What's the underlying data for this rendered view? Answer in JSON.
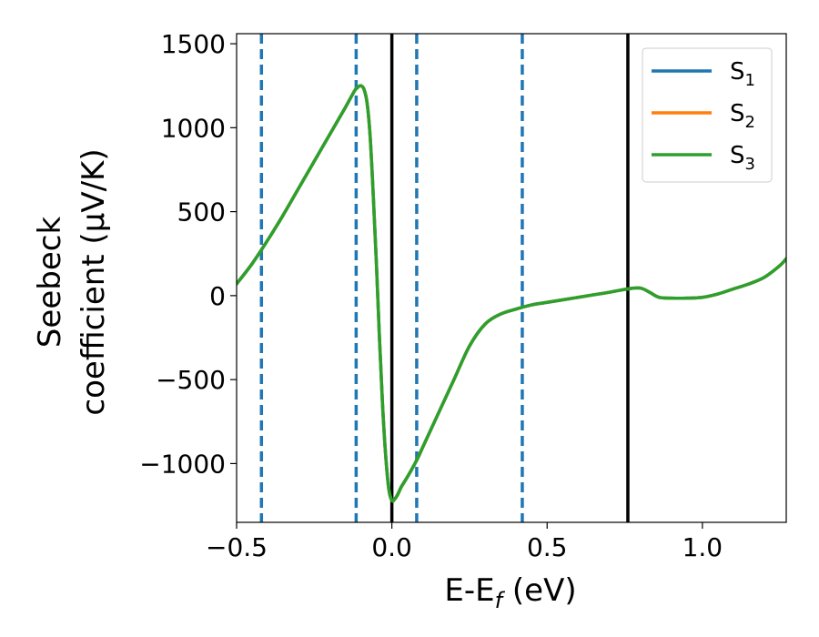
{
  "chart_data": {
    "type": "line",
    "xlabel": "E-E",
    "xlabel_sub": "f",
    "xlabel_unit": " (eV)",
    "ylabel_line1": "Seebeck",
    "ylabel_line2": "coefficient  (μV/K)",
    "xlim": [
      -0.5,
      1.27
    ],
    "ylim": [
      -1350,
      1560
    ],
    "x_ticks": [
      -0.5,
      0.0,
      0.5,
      1.0
    ],
    "x_tick_labels": [
      "−0.5",
      "0.0",
      "0.5",
      "1.0"
    ],
    "y_ticks": [
      -1000,
      -500,
      0,
      500,
      1000,
      1500
    ],
    "y_tick_labels": [
      "−1000",
      "−500",
      "0",
      "500",
      "1000",
      "1500"
    ],
    "grid": false,
    "legend_position": "top-right",
    "series": [
      {
        "name": "S",
        "name_sub": "1",
        "color": "#1f77b4",
        "x": [
          -0.5,
          -0.45,
          -0.4,
          -0.35,
          -0.3,
          -0.25,
          -0.2,
          -0.15,
          -0.12,
          -0.11,
          -0.1,
          -0.09,
          -0.08,
          -0.07,
          -0.06,
          -0.05,
          -0.04,
          -0.03,
          -0.02,
          -0.01,
          0.0,
          0.01,
          0.02,
          0.03,
          0.05,
          0.08,
          0.1,
          0.15,
          0.2,
          0.25,
          0.3,
          0.35,
          0.4,
          0.45,
          0.5,
          0.55,
          0.6,
          0.65,
          0.7,
          0.76,
          0.8,
          0.83,
          0.86,
          0.9,
          0.95,
          1.0,
          1.05,
          1.1,
          1.15,
          1.2,
          1.25,
          1.27
        ],
        "y": [
          70,
          190,
          330,
          480,
          640,
          800,
          960,
          1120,
          1220,
          1240,
          1250,
          1230,
          1150,
          950,
          600,
          200,
          -250,
          -650,
          -950,
          -1150,
          -1220,
          -1210,
          -1180,
          -1140,
          -1080,
          -980,
          -900,
          -700,
          -500,
          -300,
          -170,
          -110,
          -80,
          -55,
          -40,
          -25,
          -10,
          5,
          20,
          40,
          45,
          20,
          -10,
          -15,
          -15,
          -10,
          10,
          40,
          70,
          110,
          180,
          220
        ]
      },
      {
        "name": "S",
        "name_sub": "2",
        "color": "#ff7f0e",
        "x": [
          -0.5,
          -0.45,
          -0.4,
          -0.35,
          -0.3,
          -0.25,
          -0.2,
          -0.15,
          -0.12,
          -0.11,
          -0.1,
          -0.09,
          -0.08,
          -0.07,
          -0.06,
          -0.05,
          -0.04,
          -0.03,
          -0.02,
          -0.01,
          0.0,
          0.01,
          0.02,
          0.03,
          0.05,
          0.08,
          0.1,
          0.15,
          0.2,
          0.25,
          0.3,
          0.35,
          0.4,
          0.45,
          0.5,
          0.55,
          0.6,
          0.65,
          0.7,
          0.76,
          0.8,
          0.83,
          0.86,
          0.9,
          0.95,
          1.0,
          1.05,
          1.1,
          1.15,
          1.2,
          1.25,
          1.27
        ],
        "y": [
          70,
          190,
          330,
          480,
          640,
          800,
          960,
          1120,
          1220,
          1240,
          1250,
          1230,
          1150,
          950,
          600,
          200,
          -250,
          -650,
          -950,
          -1150,
          -1220,
          -1210,
          -1180,
          -1140,
          -1080,
          -980,
          -900,
          -700,
          -500,
          -300,
          -170,
          -110,
          -80,
          -55,
          -40,
          -25,
          -10,
          5,
          20,
          40,
          45,
          20,
          -10,
          -15,
          -15,
          -10,
          10,
          40,
          70,
          110,
          180,
          220
        ]
      },
      {
        "name": "S",
        "name_sub": "3",
        "color": "#2ca02c",
        "x": [
          -0.5,
          -0.45,
          -0.4,
          -0.35,
          -0.3,
          -0.25,
          -0.2,
          -0.15,
          -0.12,
          -0.11,
          -0.1,
          -0.09,
          -0.08,
          -0.07,
          -0.06,
          -0.05,
          -0.04,
          -0.03,
          -0.02,
          -0.01,
          0.0,
          0.01,
          0.02,
          0.03,
          0.05,
          0.08,
          0.1,
          0.15,
          0.2,
          0.25,
          0.3,
          0.35,
          0.4,
          0.45,
          0.5,
          0.55,
          0.6,
          0.65,
          0.7,
          0.76,
          0.8,
          0.83,
          0.86,
          0.9,
          0.95,
          1.0,
          1.05,
          1.1,
          1.15,
          1.2,
          1.25,
          1.27
        ],
        "y": [
          70,
          190,
          330,
          480,
          640,
          800,
          960,
          1120,
          1220,
          1240,
          1250,
          1230,
          1150,
          950,
          600,
          200,
          -250,
          -650,
          -950,
          -1150,
          -1220,
          -1210,
          -1180,
          -1140,
          -1080,
          -980,
          -900,
          -700,
          -500,
          -300,
          -170,
          -110,
          -80,
          -55,
          -40,
          -25,
          -10,
          5,
          20,
          40,
          45,
          20,
          -10,
          -15,
          -15,
          -10,
          10,
          40,
          70,
          110,
          180,
          220
        ]
      }
    ],
    "vlines_dashed": {
      "color": "#1f77b4",
      "x": [
        -0.42,
        -0.115,
        0.08,
        0.42
      ]
    },
    "vlines_solid": {
      "color": "#000000",
      "x": [
        0.0,
        0.76
      ]
    }
  }
}
